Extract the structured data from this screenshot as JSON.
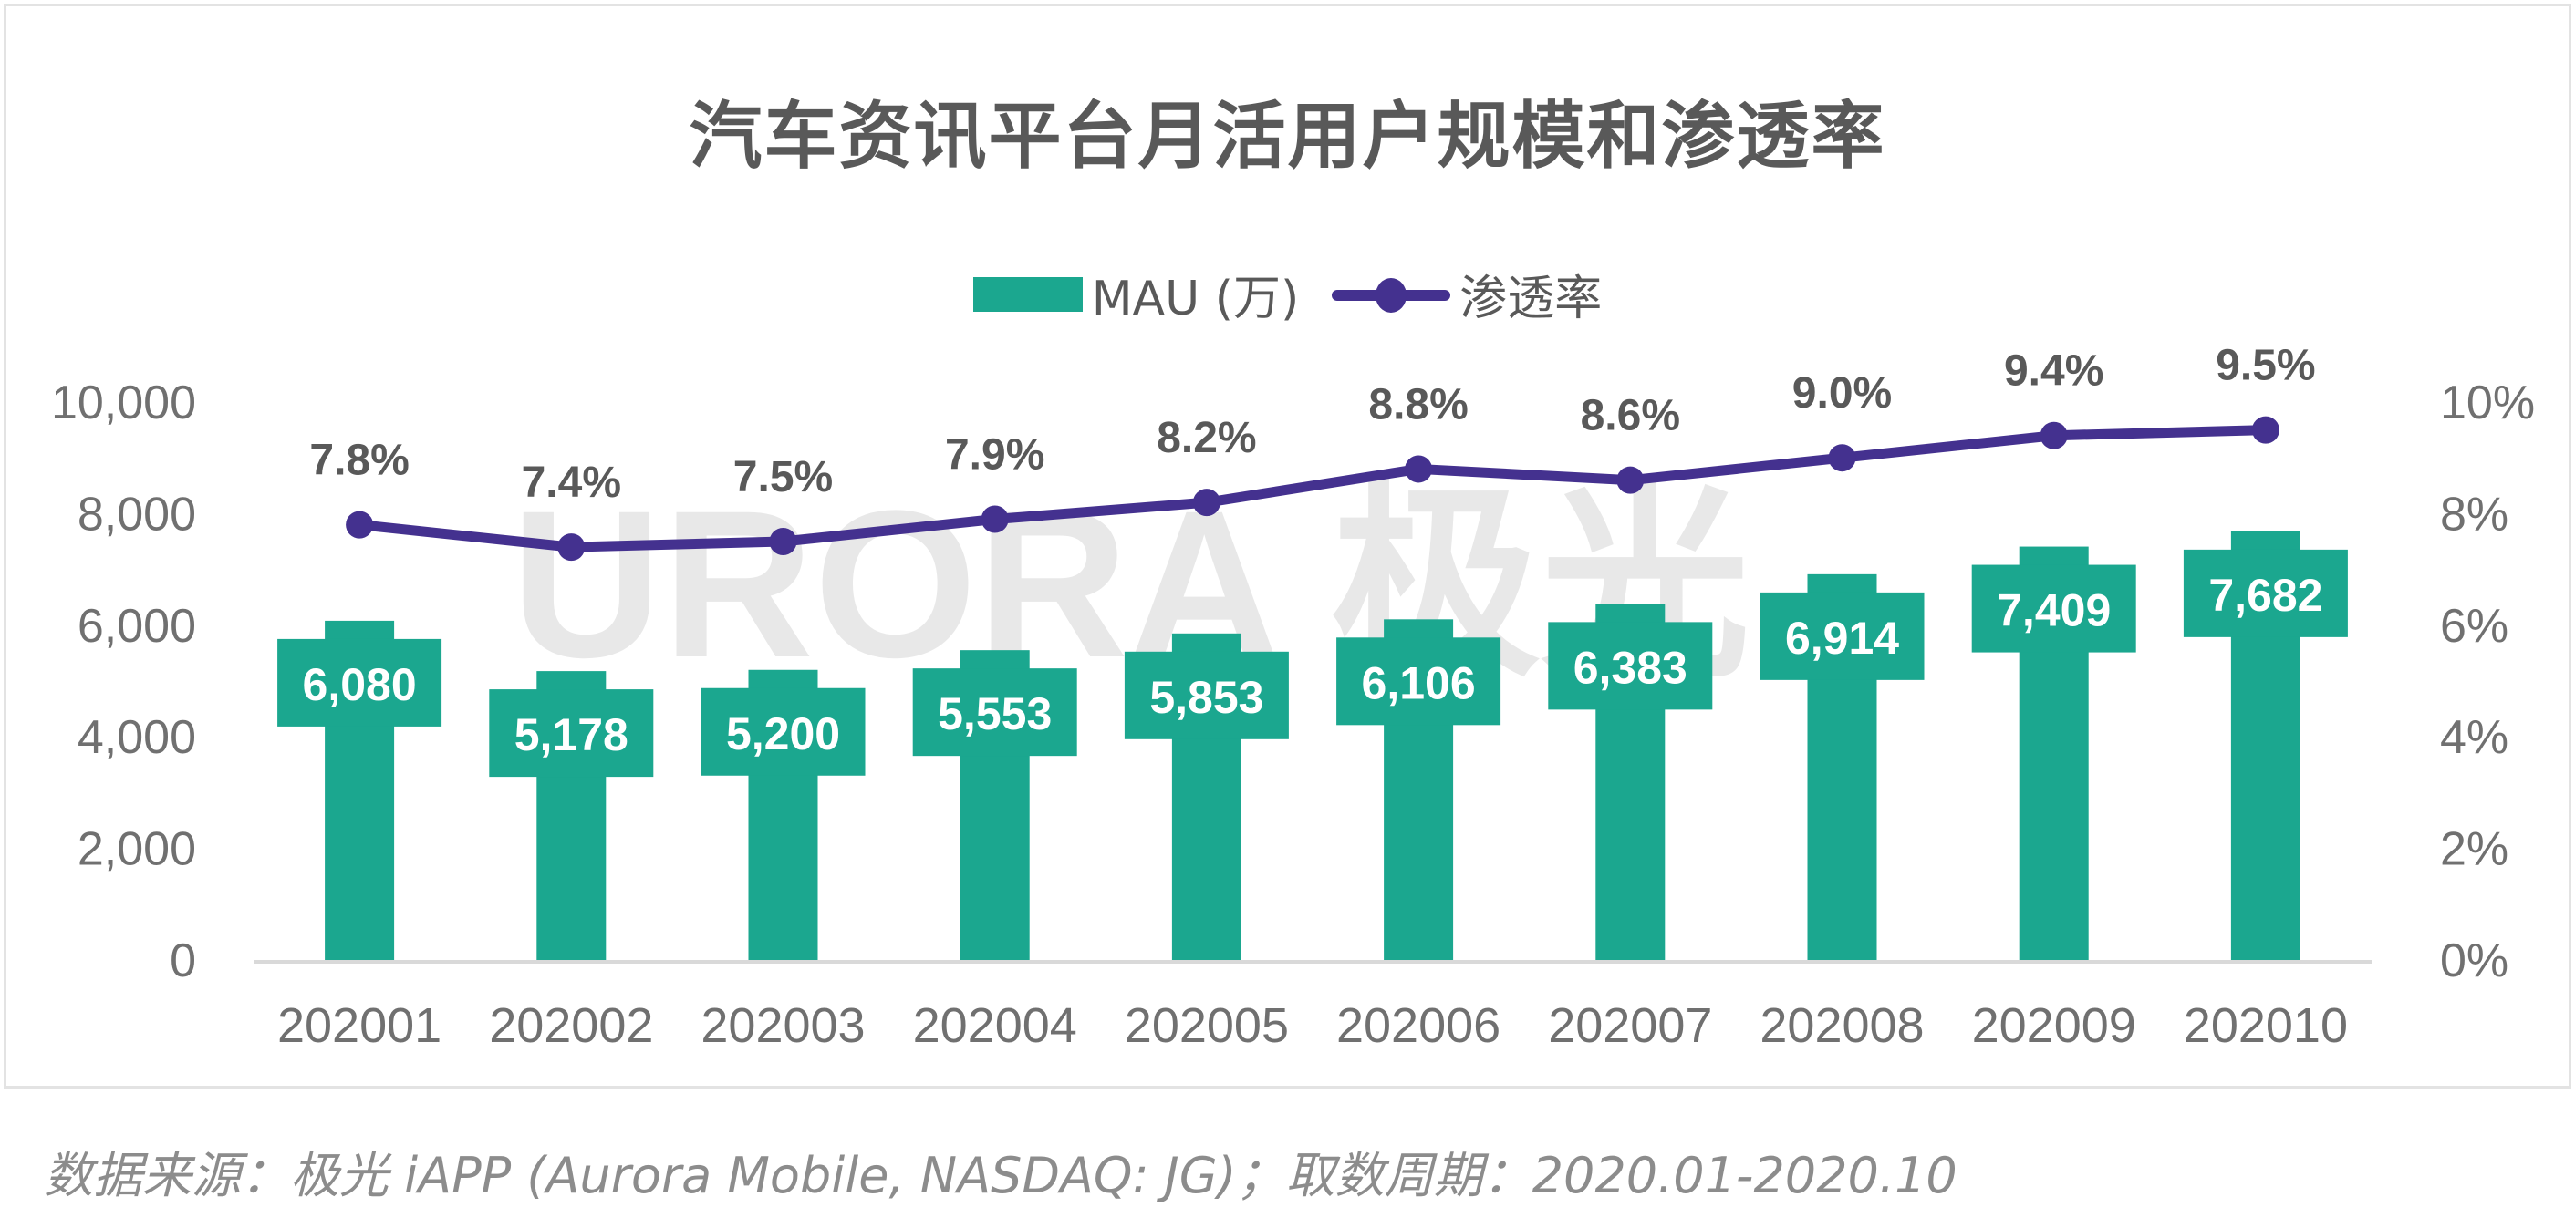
{
  "title": "汽车资讯平台月活用户规模和渗透率",
  "legend": {
    "bar_label": "MAU (万)",
    "line_label": "渗透率"
  },
  "watermark": "URORA 极光",
  "source": "数据来源：极光 iAPP (Aurora Mobile, NASDAQ: JG)；取数周期：2020.01-2020.10",
  "colors": {
    "bar": "#1BA78F",
    "line": "#44318F",
    "text": "#595959",
    "axis_text": "#707070"
  },
  "chart_data": {
    "type": "bar",
    "title": "汽车资讯平台月活用户规模和渗透率",
    "xlabel": "",
    "ylabel": "",
    "categories": [
      "202001",
      "202002",
      "202003",
      "202004",
      "202005",
      "202006",
      "202007",
      "202008",
      "202009",
      "202010"
    ],
    "series": [
      {
        "name": "MAU (万)",
        "type": "bar",
        "axis": "left",
        "values": [
          6080,
          5178,
          5200,
          5553,
          5853,
          6106,
          6383,
          6914,
          7409,
          7682
        ],
        "labels": [
          "6,080",
          "5,178",
          "5,200",
          "5,553",
          "5,853",
          "6,106",
          "6,383",
          "6,914",
          "7,409",
          "7,682"
        ]
      },
      {
        "name": "渗透率",
        "type": "line",
        "axis": "right",
        "values": [
          7.8,
          7.4,
          7.5,
          7.9,
          8.2,
          8.8,
          8.6,
          9.0,
          9.4,
          9.5
        ],
        "labels": [
          "7.8%",
          "7.4%",
          "7.5%",
          "7.9%",
          "8.2%",
          "8.8%",
          "8.6%",
          "9.0%",
          "9.4%",
          "9.5%"
        ]
      }
    ],
    "ylim_left": [
      0,
      10000
    ],
    "ylim_right": [
      0,
      10
    ],
    "yticks_left": [
      "0",
      "2,000",
      "4,000",
      "6,000",
      "8,000",
      "10,000"
    ],
    "yticks_right": [
      "0%",
      "2%",
      "4%",
      "6%",
      "8%",
      "10%"
    ],
    "grid": false,
    "legend_position": "top-center"
  }
}
